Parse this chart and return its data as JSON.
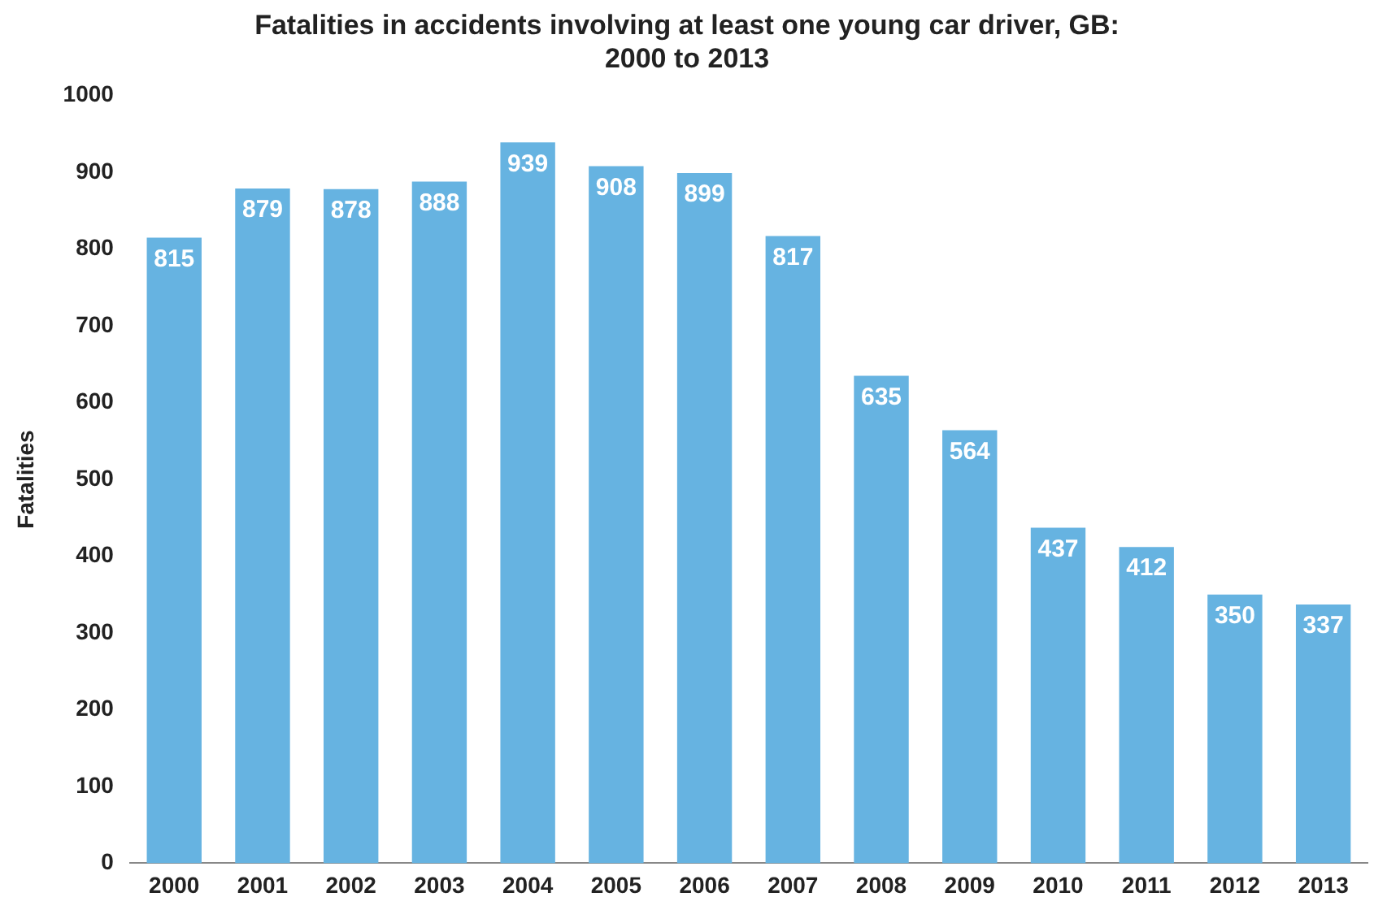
{
  "chart_data": {
    "type": "bar",
    "title": "Fatalities in accidents involving at least one young car driver, GB: 2000 to 2013",
    "ylabel": "Fatalities",
    "categories": [
      "2000",
      "2001",
      "2002",
      "2003",
      "2004",
      "2005",
      "2006",
      "2007",
      "2008",
      "2009",
      "2010",
      "2011",
      "2012",
      "2013"
    ],
    "values": [
      815,
      879,
      878,
      888,
      939,
      908,
      899,
      817,
      635,
      564,
      437,
      412,
      350,
      337
    ],
    "color": "#66b3e1",
    "ylim": [
      0,
      1000
    ],
    "yticks": [
      0,
      100,
      200,
      300,
      400,
      500,
      600,
      700,
      800,
      900,
      1000
    ],
    "grid": false,
    "legend": false,
    "data_labels": true
  }
}
